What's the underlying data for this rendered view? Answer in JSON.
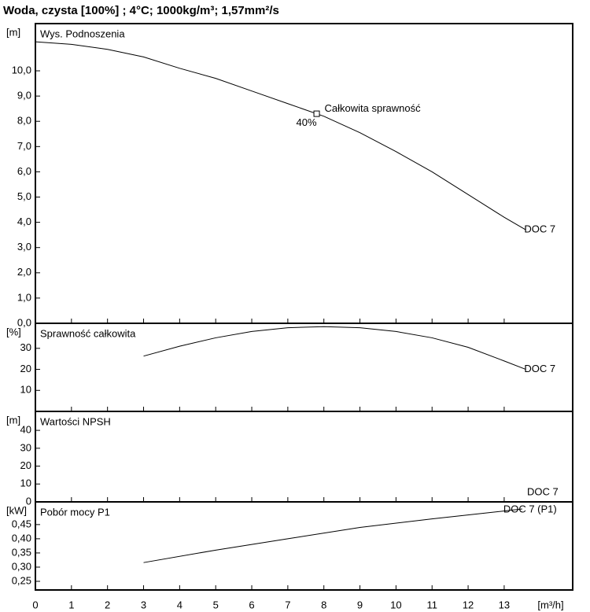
{
  "title": "Woda, czysta [100%] ; 4°C; 1000kg/m³; 1,57mm²/s",
  "chart_data": [
    {
      "type": "line",
      "ylabel": "Wys. Podnoszenia",
      "yunit": "[m]",
      "xlim": [
        0,
        14.9
      ],
      "ylim": [
        0,
        11.87
      ],
      "yticks": [
        {
          "value": 0,
          "label": "0,0"
        },
        {
          "value": 1,
          "label": "1,0"
        },
        {
          "value": 2,
          "label": "2,0"
        },
        {
          "value": 3,
          "label": "3,0"
        },
        {
          "value": 4,
          "label": "4,0"
        },
        {
          "value": 5,
          "label": "5,0"
        },
        {
          "value": 6,
          "label": "6,0"
        },
        {
          "value": 7,
          "label": "7,0"
        },
        {
          "value": 8,
          "label": "8,0"
        },
        {
          "value": 9,
          "label": "9,0"
        },
        {
          "value": 10,
          "label": "10,0"
        }
      ],
      "x": [
        0,
        1,
        2,
        3,
        4,
        5,
        6,
        7,
        8,
        9,
        10,
        11,
        12,
        13,
        13.6
      ],
      "series": [
        {
          "name": "DOC 7",
          "color": "#000000",
          "values": [
            11.15,
            11.05,
            10.85,
            10.55,
            10.1,
            9.7,
            9.2,
            8.7,
            8.2,
            7.55,
            6.8,
            6.0,
            5.1,
            4.2,
            3.7
          ]
        }
      ],
      "annotations": [
        {
          "text": "Całkowita sprawność",
          "label": "40%",
          "x": 7.8,
          "y": 8.3
        }
      ]
    },
    {
      "type": "line",
      "ylabel": "Sprawność całkowita",
      "yunit": "[%]",
      "xlim": [
        0,
        14.9
      ],
      "ylim": [
        0,
        41.9
      ],
      "yticks": [
        10,
        20,
        30
      ],
      "x": [
        3,
        4,
        5,
        6,
        7,
        8,
        9,
        10,
        11,
        12,
        13,
        13.6
      ],
      "series": [
        {
          "name": "DOC 7",
          "color": "#000000",
          "values": [
            26.3,
            31,
            35,
            38,
            39.8,
            40.3,
            39.8,
            38,
            35,
            30.5,
            24,
            20
          ]
        }
      ]
    },
    {
      "type": "line",
      "ylabel": "Wartości NPSH",
      "yunit": "[m]",
      "xlim": [
        0,
        14.9
      ],
      "ylim": [
        0,
        50.6
      ],
      "yticks": [
        0,
        10,
        20,
        30,
        40
      ],
      "x": [],
      "series": [
        {
          "name": "DOC 7",
          "color": "#000000",
          "values": []
        }
      ]
    },
    {
      "type": "line",
      "ylabel": "Pobór mocy P1",
      "yunit": "[kW]",
      "xlim": [
        0,
        14.9
      ],
      "ylim": [
        0.2195,
        0.53
      ],
      "yticks": [
        {
          "value": 0.25,
          "label": "0,25"
        },
        {
          "value": 0.3,
          "label": "0,30"
        },
        {
          "value": 0.35,
          "label": "0,35"
        },
        {
          "value": 0.4,
          "label": "0,40"
        },
        {
          "value": 0.45,
          "label": "0,45"
        }
      ],
      "xlabel": "[m³/h]",
      "xticks": [
        0,
        1,
        2,
        3,
        4,
        5,
        6,
        7,
        8,
        9,
        10,
        11,
        12,
        13
      ],
      "x": [
        3,
        5,
        7,
        9,
        11,
        13.5
      ],
      "series": [
        {
          "name": "DOC 7 (P1)",
          "color": "#000000",
          "values": [
            0.316,
            0.36,
            0.4,
            0.44,
            0.47,
            0.505
          ]
        }
      ]
    }
  ]
}
